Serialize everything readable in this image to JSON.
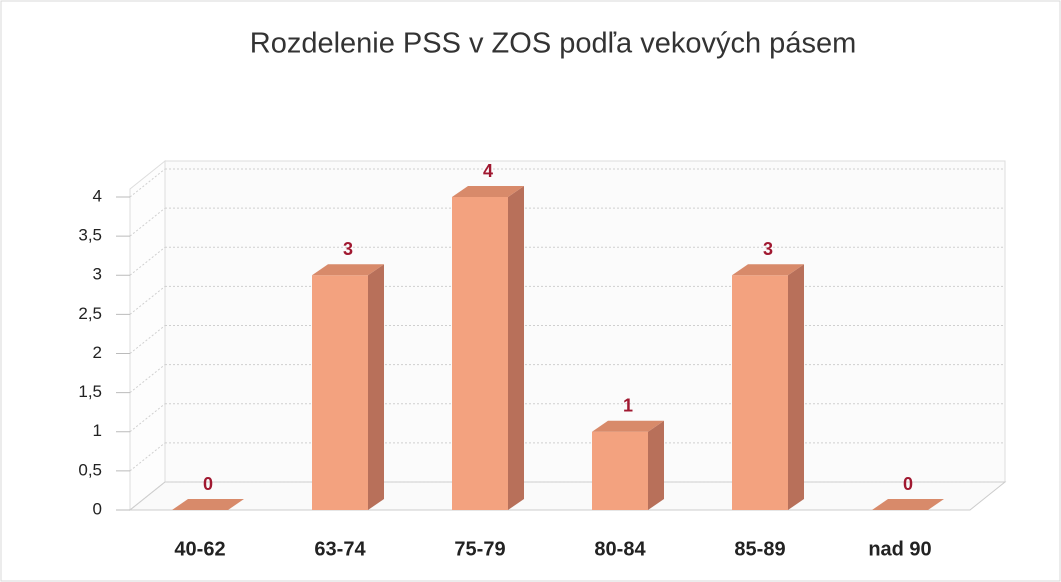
{
  "chart_data": {
    "type": "bar",
    "title": "Rozdelenie PSS v ZOS  podľa vekových pásem",
    "categories": [
      "40-62",
      "63-74",
      "75-79",
      "80-84",
      "85-89",
      "nad 90"
    ],
    "values": [
      0,
      3,
      4,
      1,
      3,
      0
    ],
    "color": "#f3a27f",
    "ylim": [
      0,
      4
    ],
    "yticks": [
      0,
      {
        "value": 0.5,
        "label": "0,5"
      },
      1,
      {
        "value": 1.5,
        "label": "1,5"
      },
      2,
      {
        "value": 2.5,
        "label": "2,5"
      },
      3,
      {
        "value": 3.5,
        "label": "3,5"
      },
      4
    ],
    "grid": true
  }
}
